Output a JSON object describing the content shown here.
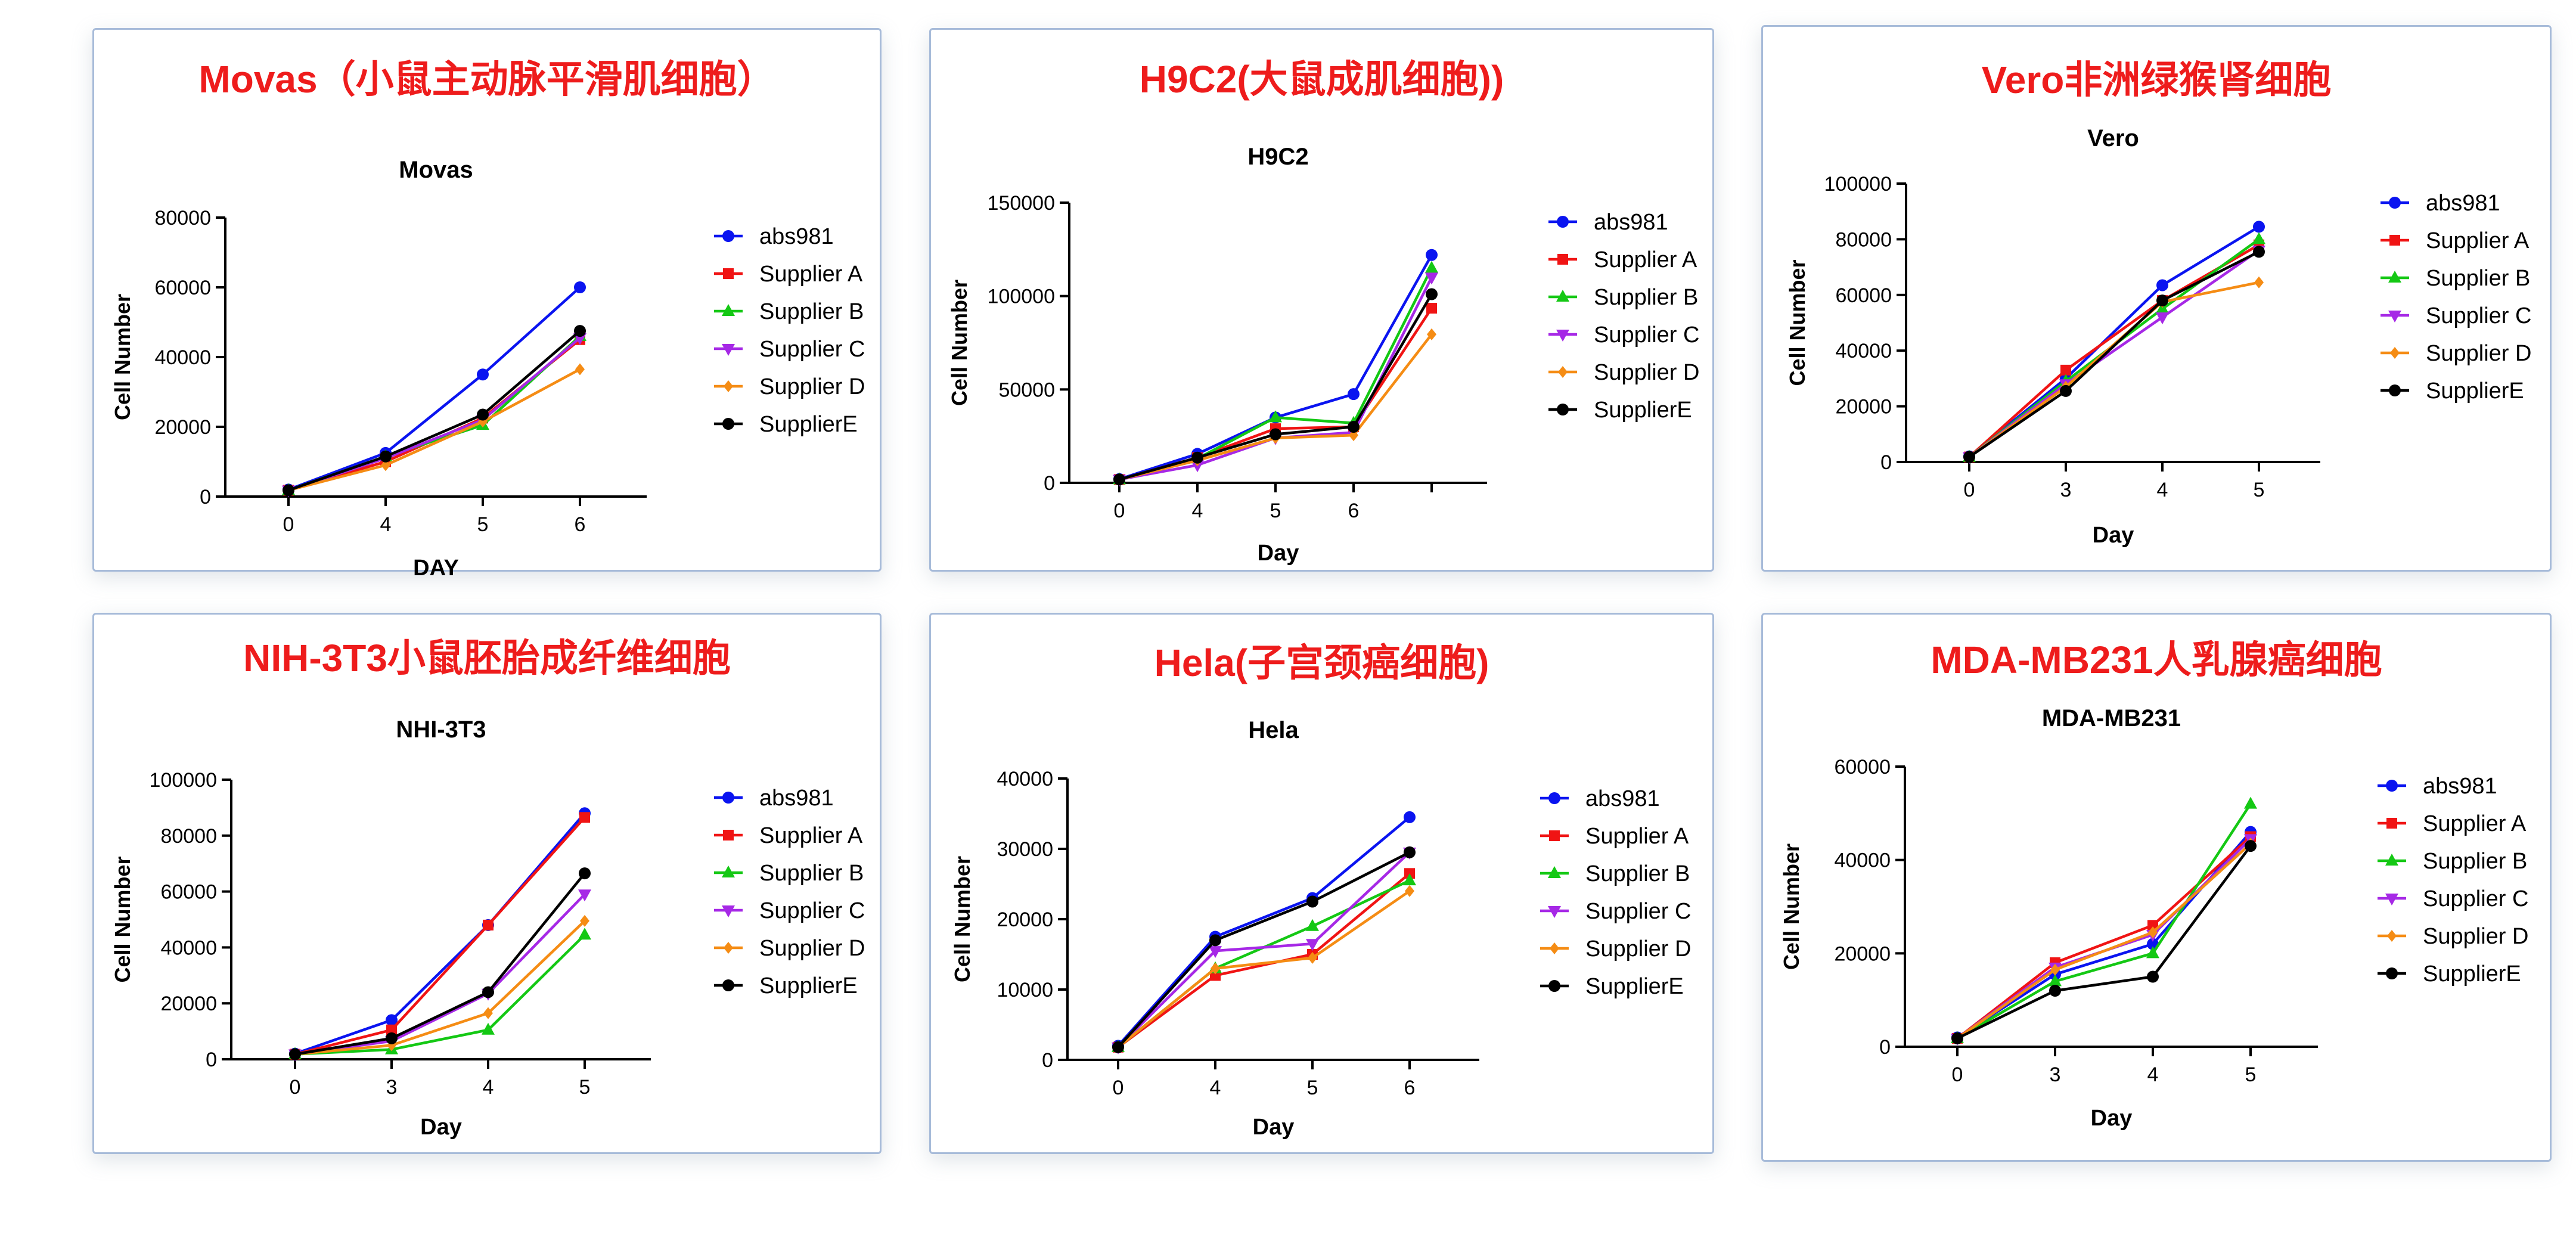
{
  "legend": [
    "abs981",
    "Supplier A",
    "Supplier B",
    "Supplier C",
    "Supplier D",
    "SupplierE"
  ],
  "series_colors": [
    "#0a14f0",
    "#f01414",
    "#14c814",
    "#a628e6",
    "#f58c14",
    "#000000"
  ],
  "series_markers": [
    "circle",
    "square",
    "triangle-up",
    "triangle-down",
    "diamond",
    "circle"
  ],
  "panels": [
    {
      "heading": "Movas（小鼠主动脉平滑肌细胞）",
      "chart": "Movas",
      "xlabel": "DAY",
      "ylabel": "Cell Number"
    },
    {
      "heading": "H9C2(大鼠成肌细胞))",
      "chart": "H9C2",
      "xlabel": "Day",
      "ylabel": "Cell Number"
    },
    {
      "heading": "Vero非洲绿猴肾细胞",
      "chart": "Vero",
      "xlabel": "Day",
      "ylabel": "Cell Number"
    },
    {
      "heading": "NIH-3T3小鼠胚胎成纤维细胞",
      "chart": "NHI-3T3",
      "xlabel": "Day",
      "ylabel": "Cell Number"
    },
    {
      "heading": "Hela(子宫颈癌细胞)",
      "chart": "Hela",
      "xlabel": "Day",
      "ylabel": "Cell Number"
    },
    {
      "heading": "MDA-MB231人乳腺癌细胞",
      "chart": "MDA-MB231",
      "xlabel": "Day",
      "ylabel": "Cell Number"
    }
  ],
  "chart_data": [
    {
      "type": "line",
      "title": "Movas",
      "xlabel": "DAY",
      "ylabel": "Cell Number",
      "categories": [
        "0",
        "4",
        "5",
        "6"
      ],
      "ylim": [
        0,
        80000
      ],
      "yticks": [
        0,
        20000,
        40000,
        60000,
        80000
      ],
      "legend_position": "right",
      "series": [
        {
          "name": "abs981",
          "values": [
            2000,
            12500,
            35000,
            60000
          ]
        },
        {
          "name": "Supplier A",
          "values": [
            1800,
            10000,
            22500,
            45000
          ]
        },
        {
          "name": "Supplier B",
          "values": [
            1800,
            11500,
            20500,
            46000
          ]
        },
        {
          "name": "Supplier C",
          "values": [
            1800,
            11000,
            22000,
            45500
          ]
        },
        {
          "name": "Supplier D",
          "values": [
            1800,
            9000,
            21500,
            36500
          ]
        },
        {
          "name": "SupplierE",
          "values": [
            1800,
            11500,
            23500,
            47500
          ]
        }
      ]
    },
    {
      "type": "line",
      "title": "H9C2",
      "xlabel": "Day",
      "ylabel": "Cell Number",
      "categories": [
        "0",
        "4",
        "5",
        "6",
        ""
      ],
      "ylim": [
        0,
        150000
      ],
      "yticks": [
        0,
        50000,
        100000,
        150000
      ],
      "legend_position": "right",
      "series": [
        {
          "name": "abs981",
          "values": [
            2000,
            15500,
            35000,
            47500,
            122000
          ]
        },
        {
          "name": "Supplier A",
          "values": [
            1800,
            13500,
            29000,
            30000,
            93500
          ]
        },
        {
          "name": "Supplier B",
          "values": [
            1800,
            13000,
            35000,
            32000,
            115000
          ]
        },
        {
          "name": "Supplier C",
          "values": [
            1800,
            9500,
            24000,
            27000,
            110000
          ]
        },
        {
          "name": "Supplier D",
          "values": [
            1800,
            12000,
            24000,
            25500,
            79500
          ]
        },
        {
          "name": "SupplierE",
          "values": [
            1800,
            13500,
            26000,
            30000,
            101000
          ]
        }
      ]
    },
    {
      "type": "line",
      "title": "Vero",
      "xlabel": "Day",
      "ylabel": "Cell Number",
      "categories": [
        "0",
        "3",
        "4",
        "5"
      ],
      "ylim": [
        0,
        100000
      ],
      "yticks": [
        0,
        20000,
        40000,
        60000,
        80000,
        100000
      ],
      "legend_position": "right",
      "series": [
        {
          "name": "abs981",
          "values": [
            2000,
            30000,
            63500,
            84500
          ]
        },
        {
          "name": "Supplier A",
          "values": [
            1800,
            33000,
            58000,
            78000
          ]
        },
        {
          "name": "Supplier B",
          "values": [
            1800,
            29000,
            55000,
            80000
          ]
        },
        {
          "name": "Supplier C",
          "values": [
            1800,
            28000,
            52000,
            76000
          ]
        },
        {
          "name": "Supplier D",
          "values": [
            1800,
            27000,
            57500,
            64500
          ]
        },
        {
          "name": "SupplierE",
          "values": [
            1800,
            25500,
            58000,
            75500
          ]
        }
      ]
    },
    {
      "type": "line",
      "title": "NHI-3T3",
      "xlabel": "Day",
      "ylabel": "Cell Number",
      "categories": [
        "0",
        "3",
        "4",
        "5"
      ],
      "ylim": [
        0,
        100000
      ],
      "yticks": [
        0,
        20000,
        40000,
        60000,
        80000,
        100000
      ],
      "legend_position": "right",
      "series": [
        {
          "name": "abs981",
          "values": [
            2000,
            14000,
            48000,
            88000
          ]
        },
        {
          "name": "Supplier A",
          "values": [
            1800,
            10500,
            48000,
            86500
          ]
        },
        {
          "name": "Supplier B",
          "values": [
            1800,
            3500,
            10500,
            44500
          ]
        },
        {
          "name": "Supplier C",
          "values": [
            1800,
            6500,
            23500,
            59000
          ]
        },
        {
          "name": "Supplier D",
          "values": [
            1800,
            5000,
            16500,
            49500
          ]
        },
        {
          "name": "SupplierE",
          "values": [
            1800,
            7500,
            24000,
            66500
          ]
        }
      ]
    },
    {
      "type": "line",
      "title": "Hela",
      "xlabel": "Day",
      "ylabel": "Cell Number",
      "categories": [
        "0",
        "4",
        "5",
        "6"
      ],
      "ylim": [
        0,
        40000
      ],
      "yticks": [
        0,
        10000,
        20000,
        30000,
        40000
      ],
      "legend_position": "right",
      "series": [
        {
          "name": "abs981",
          "values": [
            2000,
            17500,
            23000,
            34500
          ]
        },
        {
          "name": "Supplier A",
          "values": [
            1800,
            12000,
            15000,
            26500
          ]
        },
        {
          "name": "Supplier B",
          "values": [
            1800,
            13000,
            19000,
            25500
          ]
        },
        {
          "name": "Supplier C",
          "values": [
            1800,
            15500,
            16500,
            29500
          ]
        },
        {
          "name": "Supplier D",
          "values": [
            1800,
            13000,
            14500,
            24000
          ]
        },
        {
          "name": "SupplierE",
          "values": [
            1800,
            17000,
            22500,
            29500
          ]
        }
      ]
    },
    {
      "type": "line",
      "title": "MDA-MB231",
      "xlabel": "Day",
      "ylabel": "Cell Number",
      "categories": [
        "0",
        "3",
        "4",
        "5"
      ],
      "ylim": [
        0,
        60000
      ],
      "yticks": [
        0,
        20000,
        40000,
        60000
      ],
      "legend_position": "right",
      "series": [
        {
          "name": "abs981",
          "values": [
            2000,
            15500,
            22000,
            46000
          ]
        },
        {
          "name": "Supplier A",
          "values": [
            1800,
            18000,
            26000,
            45000
          ]
        },
        {
          "name": "Supplier B",
          "values": [
            1800,
            14000,
            20000,
            52000
          ]
        },
        {
          "name": "Supplier C",
          "values": [
            1800,
            17000,
            24000,
            44500
          ]
        },
        {
          "name": "Supplier D",
          "values": [
            1800,
            16500,
            24500,
            43500
          ]
        },
        {
          "name": "SupplierE",
          "values": [
            1800,
            12000,
            15000,
            43000
          ]
        }
      ]
    }
  ]
}
